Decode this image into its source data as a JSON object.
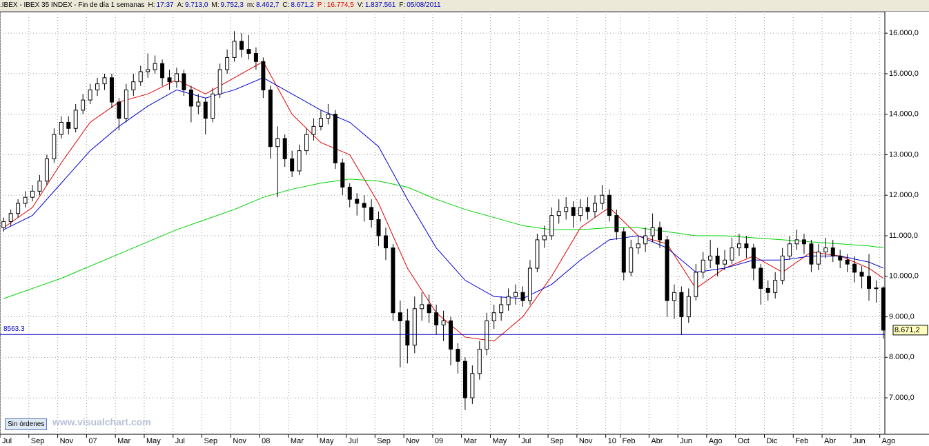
{
  "header": {
    "symbol": ".IBEX - IBEX 35 INDEX - Fin de día 1 semanas",
    "fields": [
      {
        "label": "H:",
        "value": "17:37"
      },
      {
        "label": "A:",
        "value": "9.713,0"
      },
      {
        "label": "M:",
        "value": "9.752,3"
      },
      {
        "label": "m:",
        "value": "8.462,7"
      },
      {
        "label": "C:",
        "value": "8.671,2"
      },
      {
        "label": "P :",
        "value": "16.774,5"
      },
      {
        "label": "V:",
        "value": "1.837.561"
      },
      {
        "label": "F:",
        "value": "05/08/2011"
      }
    ]
  },
  "button": "Sin órdenes",
  "watermark": "www.visualchart.com",
  "chart_data": {
    "type": "candlestick",
    "open": [
      11200,
      11350,
      11550,
      11800,
      11950,
      12100,
      12350,
      12900,
      13500,
      13800,
      13650,
      14100,
      14350,
      14600,
      14750,
      14900,
      14300,
      13900,
      14600,
      14800,
      15050,
      15100,
      15250,
      14900,
      14800,
      15000,
      14600,
      14200,
      14300,
      13900,
      14500,
      15100,
      15400,
      15800,
      15600,
      15500,
      15300,
      14600,
      13200,
      13400,
      12900,
      12600,
      13100,
      13500,
      13700,
      13900,
      14000,
      12800,
      12200,
      11900,
      11800,
      11700,
      11400,
      11000,
      10700,
      9100,
      8900,
      8300,
      9200,
      9300,
      9100,
      8800,
      8900,
      8200,
      7900,
      7000,
      7600,
      8200,
      8900,
      9100,
      9300,
      9500,
      9600,
      9400,
      10200,
      10900,
      11000,
      11500,
      11600,
      11700,
      11500,
      11700,
      11600,
      11800,
      12000,
      11500,
      11100,
      10100,
      10700,
      10800,
      11000,
      11200,
      10900,
      9400,
      9600,
      9000,
      9500,
      10100,
      10400,
      10500,
      10300,
      10400,
      10700,
      10800,
      10700,
      10200,
      9700,
      9600,
      9900,
      10500,
      10800,
      10900,
      10800,
      10300,
      10600,
      10700,
      10500,
      10400,
      10300,
      10100,
      10000,
      9700,
      9713
    ],
    "high": [
      11450,
      11650,
      11900,
      12100,
      12250,
      12500,
      13000,
      13650,
      13950,
      13950,
      14250,
      14500,
      14750,
      14900,
      15000,
      15000,
      14400,
      14750,
      15000,
      15200,
      15500,
      15450,
      15350,
      15100,
      15150,
      15100,
      14700,
      14500,
      14400,
      14650,
      15250,
      15600,
      16050,
      16000,
      15950,
      15650,
      15400,
      14700,
      13700,
      13500,
      13100,
      13250,
      13650,
      13900,
      14100,
      14250,
      14100,
      12900,
      12300,
      12050,
      12000,
      11900,
      11600,
      11200,
      10800,
      9400,
      9200,
      9500,
      9600,
      9550,
      9300,
      9150,
      9000,
      8350,
      8000,
      7800,
      8400,
      9100,
      9300,
      9500,
      9700,
      9800,
      9750,
      10400,
      11050,
      11250,
      11700,
      11900,
      11950,
      11850,
      11900,
      11950,
      12000,
      12250,
      12150,
      11650,
      11200,
      10900,
      11000,
      11200,
      11550,
      11350,
      11000,
      9800,
      9750,
      9700,
      10300,
      10600,
      10900,
      10700,
      10650,
      10950,
      11050,
      11000,
      10800,
      10300,
      9900,
      10100,
      10700,
      11000,
      11150,
      11050,
      10900,
      10800,
      10950,
      10900,
      10650,
      10550,
      10500,
      10250,
      10550,
      9900,
      9752.3
    ],
    "low": [
      11100,
      11250,
      11450,
      11700,
      11850,
      12000,
      12250,
      12800,
      13400,
      13500,
      13550,
      14000,
      14250,
      14450,
      14600,
      14150,
      13600,
      13800,
      14450,
      14700,
      14900,
      15000,
      14700,
      14600,
      14650,
      14450,
      13800,
      14000,
      13500,
      13800,
      14400,
      15000,
      15300,
      15400,
      15350,
      15100,
      14400,
      12900,
      11950,
      12700,
      12450,
      12500,
      13000,
      13350,
      13600,
      13750,
      12650,
      12000,
      11700,
      11500,
      11350,
      11200,
      10750,
      10400,
      8900,
      7750,
      7850,
      8100,
      8900,
      8850,
      8550,
      8400,
      7800,
      7600,
      6700,
      6850,
      7450,
      8050,
      8700,
      8900,
      9150,
      9300,
      9250,
      9300,
      10100,
      10700,
      10900,
      11300,
      11400,
      11200,
      11350,
      11400,
      11450,
      11650,
      11350,
      10900,
      9900,
      10000,
      10550,
      10600,
      10850,
      10700,
      9000,
      8950,
      8550,
      8850,
      9400,
      9950,
      10200,
      10000,
      10150,
      10300,
      10500,
      10450,
      9900,
      9300,
      9400,
      9450,
      9800,
      10400,
      10650,
      10550,
      10100,
      10150,
      10450,
      10350,
      10200,
      10100,
      9850,
      9700,
      9400,
      9350,
      8462.7
    ],
    "close": [
      11350,
      11550,
      11800,
      11950,
      12100,
      12350,
      12900,
      13500,
      13800,
      13650,
      14100,
      14350,
      14600,
      14750,
      14900,
      14300,
      13900,
      14600,
      14800,
      15050,
      15100,
      15250,
      14900,
      14800,
      15000,
      14600,
      14200,
      14300,
      13900,
      14500,
      15100,
      15400,
      15800,
      15600,
      15500,
      15300,
      14600,
      13200,
      13400,
      12900,
      12600,
      13100,
      13500,
      13700,
      13900,
      14000,
      12800,
      12200,
      11900,
      11800,
      11700,
      11400,
      11000,
      10700,
      9100,
      8900,
      8300,
      9200,
      9300,
      9100,
      8800,
      8900,
      8200,
      7900,
      7000,
      7600,
      8200,
      8900,
      9100,
      9300,
      9500,
      9600,
      9400,
      10200,
      10900,
      11000,
      11500,
      11600,
      11700,
      11500,
      11700,
      11600,
      11800,
      12000,
      11500,
      11100,
      10100,
      10700,
      10800,
      11000,
      11200,
      10900,
      9400,
      9600,
      9000,
      9500,
      10100,
      10400,
      10500,
      10300,
      10400,
      10700,
      10800,
      10700,
      10200,
      9700,
      9600,
      9900,
      10500,
      10800,
      10900,
      10800,
      10300,
      10600,
      10700,
      10500,
      10400,
      10300,
      10100,
      10000,
      9700,
      9713,
      8671.2
    ],
    "series": [
      {
        "color": "#e00000",
        "x": [
          0,
          4,
          8,
          12,
          16,
          20,
          24,
          28,
          32,
          36,
          40,
          44,
          48,
          52,
          56,
          60,
          64,
          68,
          72,
          76,
          80,
          84,
          88,
          92,
          96,
          100,
          104,
          108,
          112,
          116,
          120,
          122
        ],
        "values": [
          11200,
          11700,
          12800,
          13800,
          14300,
          14500,
          14850,
          14500,
          14900,
          15300,
          14000,
          13300,
          13000,
          11800,
          10200,
          9100,
          8500,
          8400,
          9000,
          10000,
          11200,
          11700,
          11000,
          10800,
          9700,
          10200,
          10500,
          10100,
          10600,
          10500,
          10200,
          9950
        ]
      },
      {
        "color": "#0000d0",
        "x": [
          0,
          4,
          8,
          12,
          16,
          20,
          24,
          28,
          32,
          36,
          40,
          44,
          48,
          52,
          56,
          60,
          64,
          68,
          72,
          76,
          80,
          84,
          88,
          92,
          96,
          100,
          104,
          108,
          112,
          116,
          120,
          122
        ],
        "values": [
          11150,
          11500,
          12300,
          13100,
          13700,
          14200,
          14600,
          14400,
          14600,
          14900,
          14500,
          14100,
          13800,
          13200,
          11900,
          10700,
          9900,
          9500,
          9450,
          9800,
          10400,
          10900,
          11000,
          10700,
          10100,
          10200,
          10400,
          10400,
          10500,
          10500,
          10350,
          10200
        ]
      },
      {
        "color": "#00d000",
        "x": [
          0,
          4,
          8,
          12,
          16,
          20,
          24,
          28,
          32,
          36,
          40,
          44,
          48,
          52,
          56,
          60,
          64,
          68,
          72,
          76,
          80,
          84,
          88,
          92,
          96,
          100,
          104,
          108,
          112,
          116,
          120,
          122
        ],
        "values": [
          9450,
          9700,
          9950,
          10250,
          10550,
          10850,
          11150,
          11400,
          11650,
          11950,
          12150,
          12300,
          12400,
          12350,
          12200,
          11900,
          11650,
          11450,
          11250,
          11150,
          11150,
          11200,
          11200,
          11100,
          11000,
          11000,
          10950,
          10900,
          10850,
          10800,
          10750,
          10700
        ]
      }
    ],
    "xlim": [
      -0.5,
      122.2
    ],
    "xticks": [
      {
        "value": -0.5,
        "label": "Jul"
      },
      {
        "value": 3.5,
        "label": "Sep"
      },
      {
        "value": 7.5,
        "label": "Nov"
      },
      {
        "value": 11.5,
        "label": "07"
      },
      {
        "value": 15.5,
        "label": "Mar"
      },
      {
        "value": 19.5,
        "label": "May"
      },
      {
        "value": 23.5,
        "label": "Jul"
      },
      {
        "value": 27.5,
        "label": "Sep"
      },
      {
        "value": 31.5,
        "label": "Nov"
      },
      {
        "value": 35.5,
        "label": "08"
      },
      {
        "value": 39.5,
        "label": "Mar"
      },
      {
        "value": 43.5,
        "label": "May"
      },
      {
        "value": 47.5,
        "label": "Jul"
      },
      {
        "value": 51.5,
        "label": "Sep"
      },
      {
        "value": 55.5,
        "label": "Nov"
      },
      {
        "value": 59.5,
        "label": "09"
      },
      {
        "value": 63.5,
        "label": "Mar"
      },
      {
        "value": 67.5,
        "label": "May"
      },
      {
        "value": 71.5,
        "label": "Jul"
      },
      {
        "value": 75.5,
        "label": "Sep"
      },
      {
        "value": 79.5,
        "label": "Nov"
      },
      {
        "value": 83.5,
        "label": "10"
      },
      {
        "value": 85.5,
        "label": "Feb"
      },
      {
        "value": 89.5,
        "label": "Abr"
      },
      {
        "value": 93.5,
        "label": "Jun"
      },
      {
        "value": 97.5,
        "label": "Ago"
      },
      {
        "value": 101.5,
        "label": "Oct"
      },
      {
        "value": 105.5,
        "label": "Dic"
      },
      {
        "value": 109.5,
        "label": "Feb"
      },
      {
        "value": 113.5,
        "label": "Abr"
      },
      {
        "value": 117.5,
        "label": "Jun"
      },
      {
        "value": 121.5,
        "label": "Ago"
      }
    ],
    "ylim": [
      6100,
      16530
    ],
    "yticks": [
      {
        "value": 7000,
        "label": "7.000,0"
      },
      {
        "value": 8000,
        "label": "8.000,0"
      },
      {
        "value": 9000,
        "label": "9.000,0"
      },
      {
        "value": 10000,
        "label": "10.000,0"
      },
      {
        "value": 11000,
        "label": "11.000,0"
      },
      {
        "value": 12000,
        "label": "12.000,0"
      },
      {
        "value": 13000,
        "label": "13.000,0"
      },
      {
        "value": 14000,
        "label": "14.000,0"
      },
      {
        "value": 15000,
        "label": "15.000,0"
      },
      {
        "value": 16000,
        "label": "16.000,0"
      }
    ],
    "grid": true,
    "reference_line": {
      "value": 8563.3,
      "label": "8563.3",
      "color": "#0000c0"
    },
    "last_price": {
      "value": 8671.2,
      "label": "8.671,2"
    }
  }
}
